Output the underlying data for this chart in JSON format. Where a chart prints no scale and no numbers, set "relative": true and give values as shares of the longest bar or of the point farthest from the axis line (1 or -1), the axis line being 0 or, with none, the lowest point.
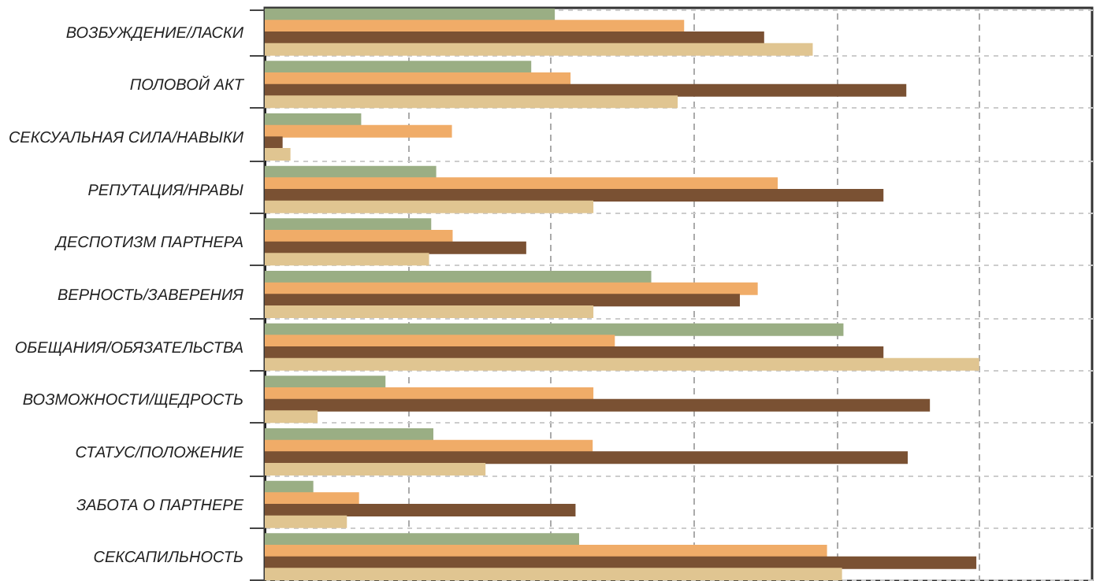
{
  "chart_data": {
    "type": "bar",
    "orientation": "horizontal",
    "relative": true,
    "grid": true,
    "legend": false,
    "categories": [
      "ВОЗБУЖДЕНИЕ/ЛАСКИ",
      "ПОЛОВОЙ АКТ",
      "СЕКСУАЛЬНАЯ СИЛА/НАВЫКИ",
      "РЕПУТАЦИЯ/НРАВЫ",
      "ДЕСПОТИЗМ ПАРТНЕРА",
      "ВЕРНОСТЬ/ЗАВЕРЕНИЯ",
      "ОБЕЩАНИЯ/ОБЯЗАТЕЛЬСТВА",
      "ВОЗМОЖНОСТИ/ЩЕДРОСТЬ",
      "СТАТУС/ПОЛОЖЕНИЕ",
      "ЗАБОТА О ПАРТНЕРЕ",
      "СЕКСАПИЛЬНОСТЬ"
    ],
    "series": [
      {
        "color": "#9aae84",
        "values": [
          0.406,
          0.373,
          0.135,
          0.24,
          0.233,
          0.541,
          0.81,
          0.169,
          0.236,
          0.068,
          0.44
        ]
      },
      {
        "color": "#f0ac68",
        "values": [
          0.587,
          0.428,
          0.262,
          0.718,
          0.263,
          0.69,
          0.49,
          0.46,
          0.459,
          0.132,
          0.787
        ]
      },
      {
        "color": "#7a5133",
        "values": [
          0.699,
          0.898,
          0.025,
          0.866,
          0.366,
          0.665,
          0.866,
          0.931,
          0.9,
          0.435,
          0.996
        ]
      },
      {
        "color": "#e0c591",
        "values": [
          0.767,
          0.578,
          0.036,
          0.46,
          0.23,
          0.46,
          1,
          0.074,
          0.309,
          0.115,
          0.808
        ]
      }
    ]
  }
}
